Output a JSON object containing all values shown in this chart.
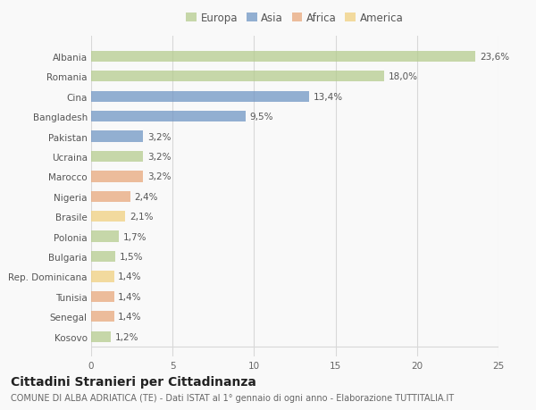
{
  "countries": [
    "Albania",
    "Romania",
    "Cina",
    "Bangladesh",
    "Pakistan",
    "Ucraina",
    "Marocco",
    "Nigeria",
    "Brasile",
    "Polonia",
    "Bulgaria",
    "Rep. Dominicana",
    "Tunisia",
    "Senegal",
    "Kosovo"
  ],
  "values": [
    23.6,
    18.0,
    13.4,
    9.5,
    3.2,
    3.2,
    3.2,
    2.4,
    2.1,
    1.7,
    1.5,
    1.4,
    1.4,
    1.4,
    1.2
  ],
  "labels": [
    "23,6%",
    "18,0%",
    "13,4%",
    "9,5%",
    "3,2%",
    "3,2%",
    "3,2%",
    "2,4%",
    "2,1%",
    "1,7%",
    "1,5%",
    "1,4%",
    "1,4%",
    "1,4%",
    "1,2%"
  ],
  "continents": [
    "Europa",
    "Europa",
    "Asia",
    "Asia",
    "Asia",
    "Europa",
    "Africa",
    "Africa",
    "America",
    "Europa",
    "Europa",
    "America",
    "Africa",
    "Africa",
    "Europa"
  ],
  "continent_colors": {
    "Europa": "#b5cc8e",
    "Asia": "#7096c4",
    "Africa": "#e8a87c",
    "America": "#f0d080"
  },
  "legend_order": [
    "Europa",
    "Asia",
    "Africa",
    "America"
  ],
  "title": "Cittadini Stranieri per Cittadinanza",
  "subtitle": "COMUNE DI ALBA ADRIATICA (TE) - Dati ISTAT al 1° gennaio di ogni anno - Elaborazione TUTTITALIA.IT",
  "xlim": [
    0,
    25
  ],
  "xticks": [
    0,
    5,
    10,
    15,
    20,
    25
  ],
  "background_color": "#f9f9f9",
  "grid_color": "#d8d8d8",
  "bar_height": 0.55,
  "label_fontsize": 7.5,
  "title_fontsize": 10,
  "subtitle_fontsize": 7,
  "tick_fontsize": 7.5,
  "legend_fontsize": 8.5,
  "bar_alpha": 0.75
}
